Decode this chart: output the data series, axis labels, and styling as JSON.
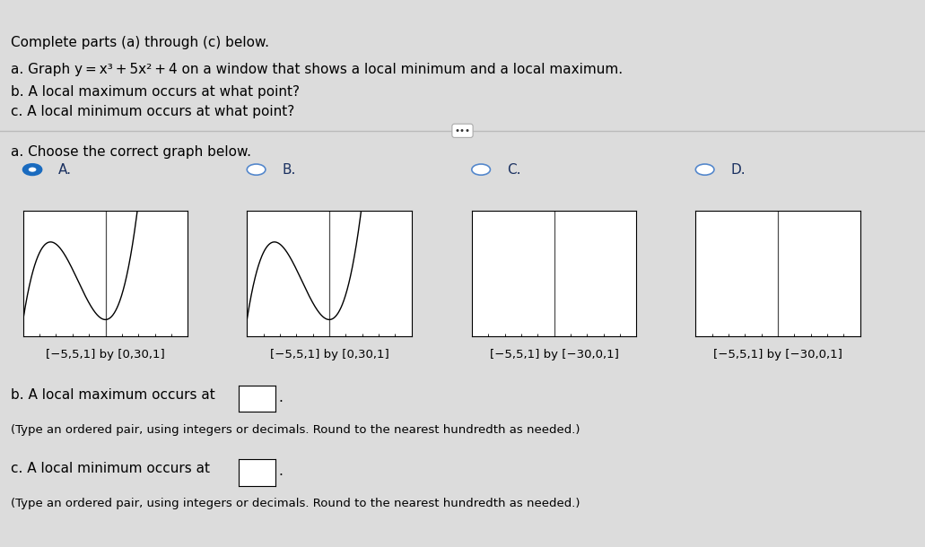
{
  "title_line1": "Complete parts (a) through (c) below.",
  "title_line2a": "a. Graph y = x",
  "title_line2b": "3",
  "title_line2c": " + 5x",
  "title_line2d": "2",
  "title_line2e": " + 4 on a window that shows a local minimum and a local maximum.",
  "title_line3": "b. A local maximum occurs at what point?",
  "title_line4": "c. A local minimum occurs at what point?",
  "section_a_label": "a. Choose the correct graph below.",
  "graphs": [
    {
      "label": "A.",
      "xrange": [
        -5,
        5
      ],
      "yrange": [
        0,
        30
      ],
      "window_text": "[−5,5,1] by [0,30,1]",
      "selected": true
    },
    {
      "label": "B.",
      "xrange": [
        -5,
        5
      ],
      "yrange": [
        0,
        30
      ],
      "window_text": "[−5,5,1] by [0,30,1]",
      "selected": false
    },
    {
      "label": "C.",
      "xrange": [
        -5,
        5
      ],
      "yrange": [
        -30,
        0
      ],
      "window_text": "[−5,5,1] by [−30,0,1]",
      "selected": false
    },
    {
      "label": "D.",
      "xrange": [
        -5,
        5
      ],
      "yrange": [
        -30,
        0
      ],
      "window_text": "[−5,5,1] by [−30,0,1]",
      "selected": false
    }
  ],
  "b_label": "b. A local maximum occurs at",
  "b_note": "(Type an ordered pair, using integers or decimals. Round to the nearest hundredth as needed.)",
  "c_label": "c. A local minimum occurs at",
  "c_note": "(Type an ordered pair, using integers or decimals. Round to the nearest hundredth as needed.)",
  "bg_color": "#dcdcdc",
  "plot_bg_color": "#ffffff",
  "curve_color": "#000000",
  "selected_radio_fill": "#1a6bbf",
  "selected_radio_edge": "#1a6bbf",
  "unselected_radio_fill": "#ffffff",
  "unselected_radio_edge": "#5588cc",
  "label_color_selected": "#1a3060",
  "label_color_unselected": "#1a3060",
  "divider_color": "#bbbbbb",
  "font_size_body": 11,
  "font_size_window": 9.5
}
